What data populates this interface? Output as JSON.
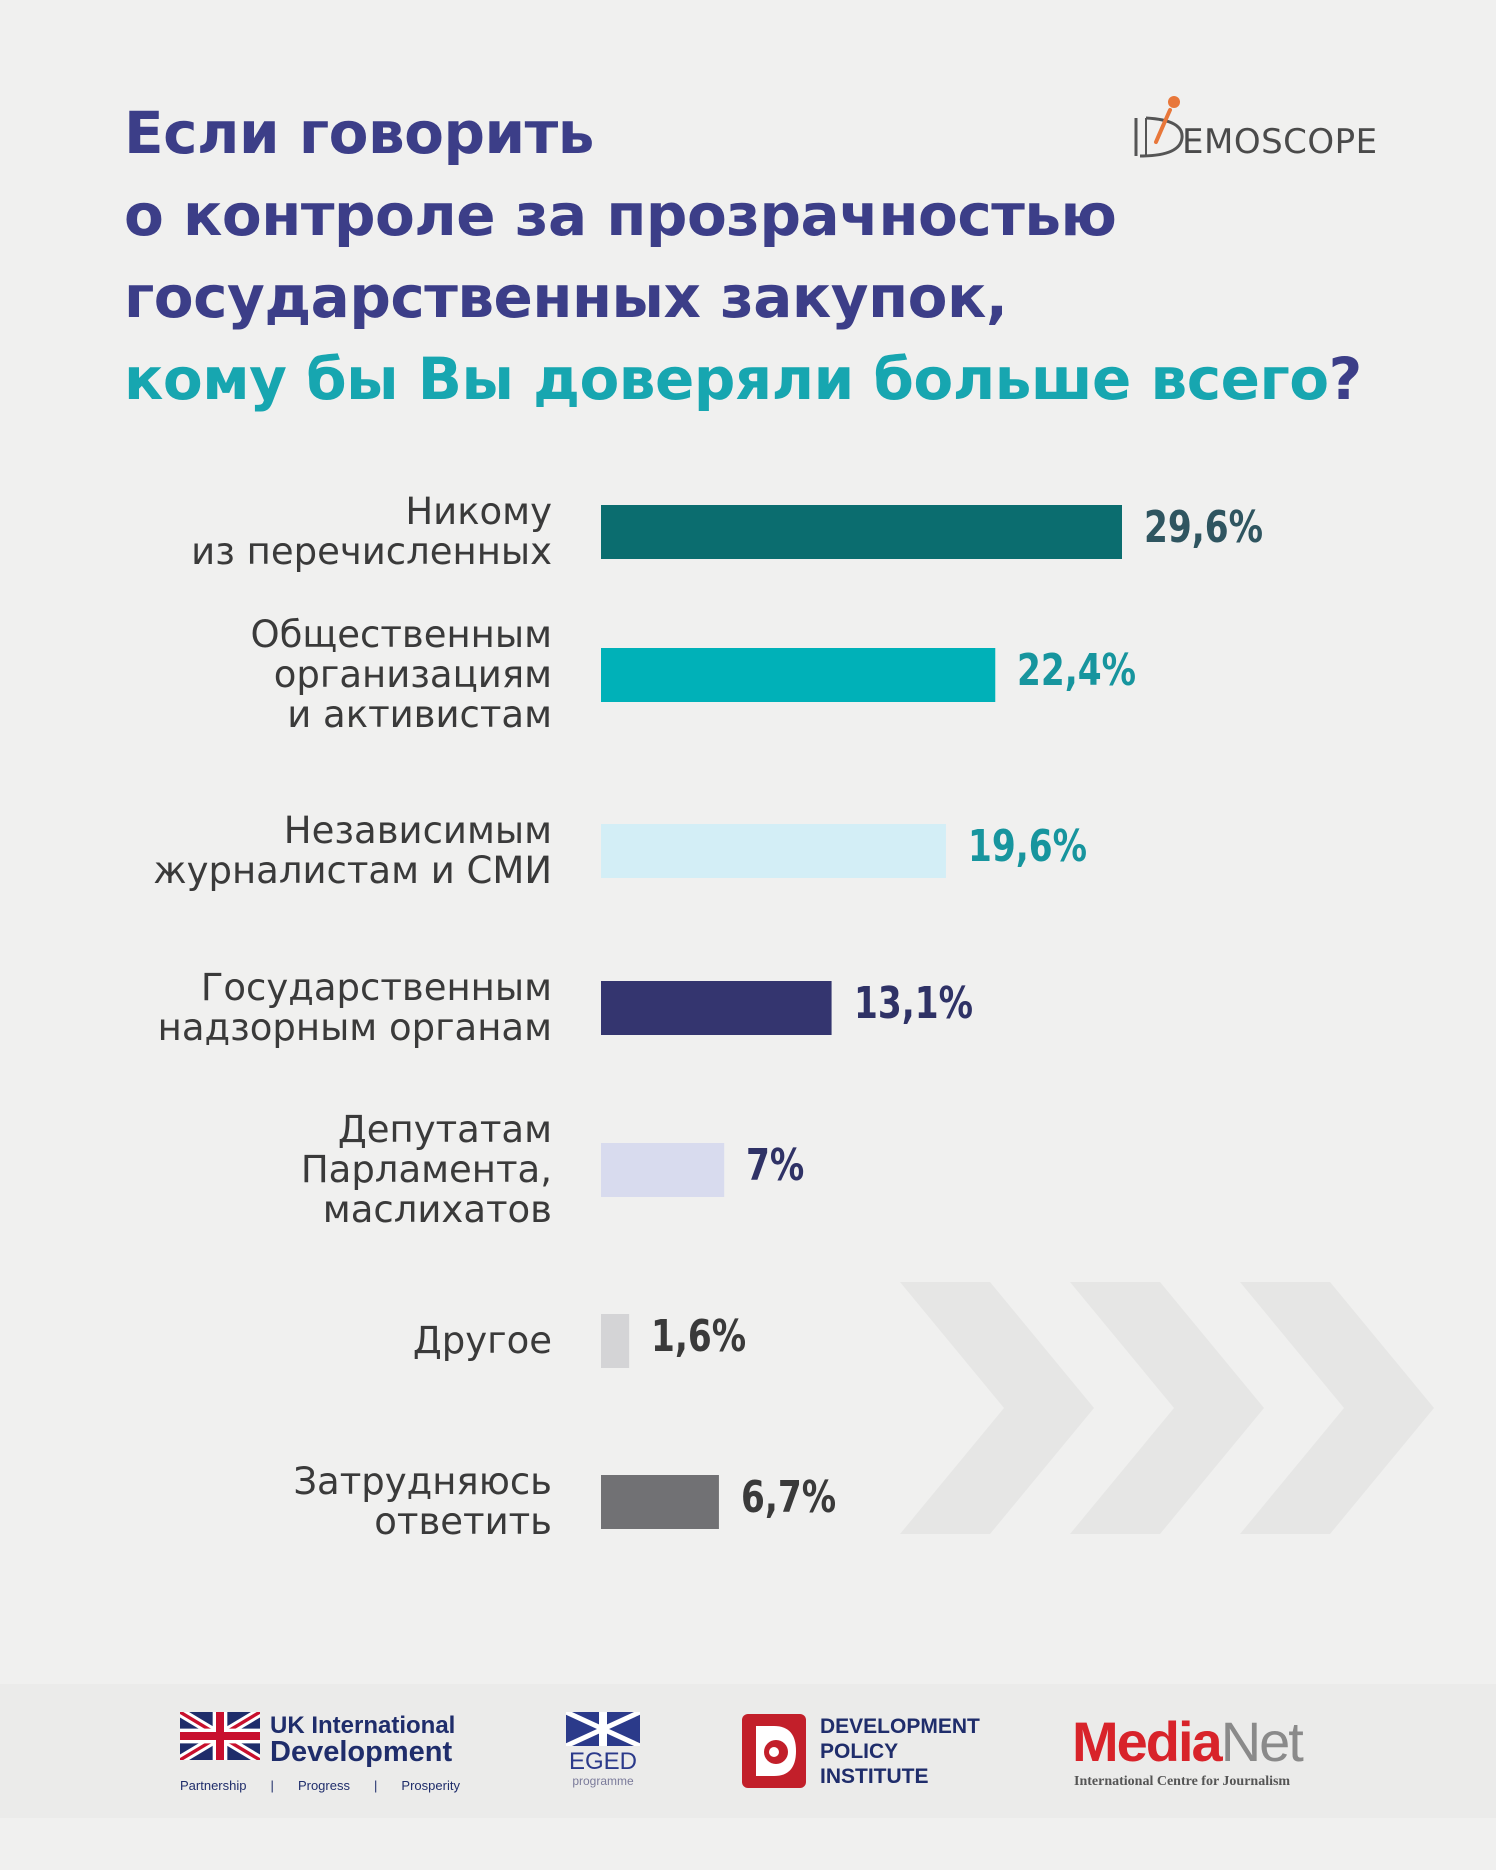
{
  "title": {
    "line1": "Если говорить",
    "line2": "о контроле за прозрачностью",
    "line3": "государственных закупок,",
    "line4": "кому бы Вы доверяли больше всего",
    "qmark": "?"
  },
  "brand": {
    "name": "EMOSCOPE",
    "accent": "#e8773a"
  },
  "chart_data": {
    "type": "bar",
    "orientation": "horizontal",
    "categories": [
      [
        "Никому",
        "из перечисленных"
      ],
      [
        "Общественным",
        "организациям",
        "и активистам"
      ],
      [
        "Независимым",
        "журналистам и СМИ"
      ],
      [
        "Государственным",
        "надзорным органам"
      ],
      [
        "Депутатам",
        "Парламента,",
        "маслихатов"
      ],
      [
        "Другое"
      ],
      [
        "Затрудняюсь",
        "ответить"
      ]
    ],
    "values": [
      29.6,
      22.4,
      19.6,
      13.1,
      7.0,
      1.6,
      6.7
    ],
    "value_labels": [
      "29,6%",
      "22,4%",
      "19,6%",
      "13,1%",
      "7%",
      "1,6%",
      "6,7%"
    ],
    "bar_colors": [
      "#0b6d6f",
      "#00b1b8",
      "#d3eef6",
      "#34356f",
      "#d8dbee",
      "#d4d4d6",
      "#717174"
    ],
    "label_colors": [
      "#2f5560",
      "#17959e",
      "#17959e",
      "#2f3266",
      "#2f3266",
      "#3a3a3a",
      "#3a3a3a"
    ],
    "xlim": [
      0,
      29.6
    ],
    "grid": false,
    "legend": false
  },
  "footer": {
    "ukid": {
      "line1": "UK International",
      "line2": "Development",
      "tag1": "Partnership",
      "sep": "|",
      "tag2": "Progress",
      "tag3": "Prosperity"
    },
    "eged": {
      "name": "EGED",
      "sub": "programme"
    },
    "dpi": {
      "line1": "DEVELOPMENT",
      "line2": "POLICY",
      "line3": "INSTITUTE"
    },
    "medianet": {
      "media": "Media",
      "net": "Net",
      "sub": "International Centre for Journalism"
    }
  }
}
